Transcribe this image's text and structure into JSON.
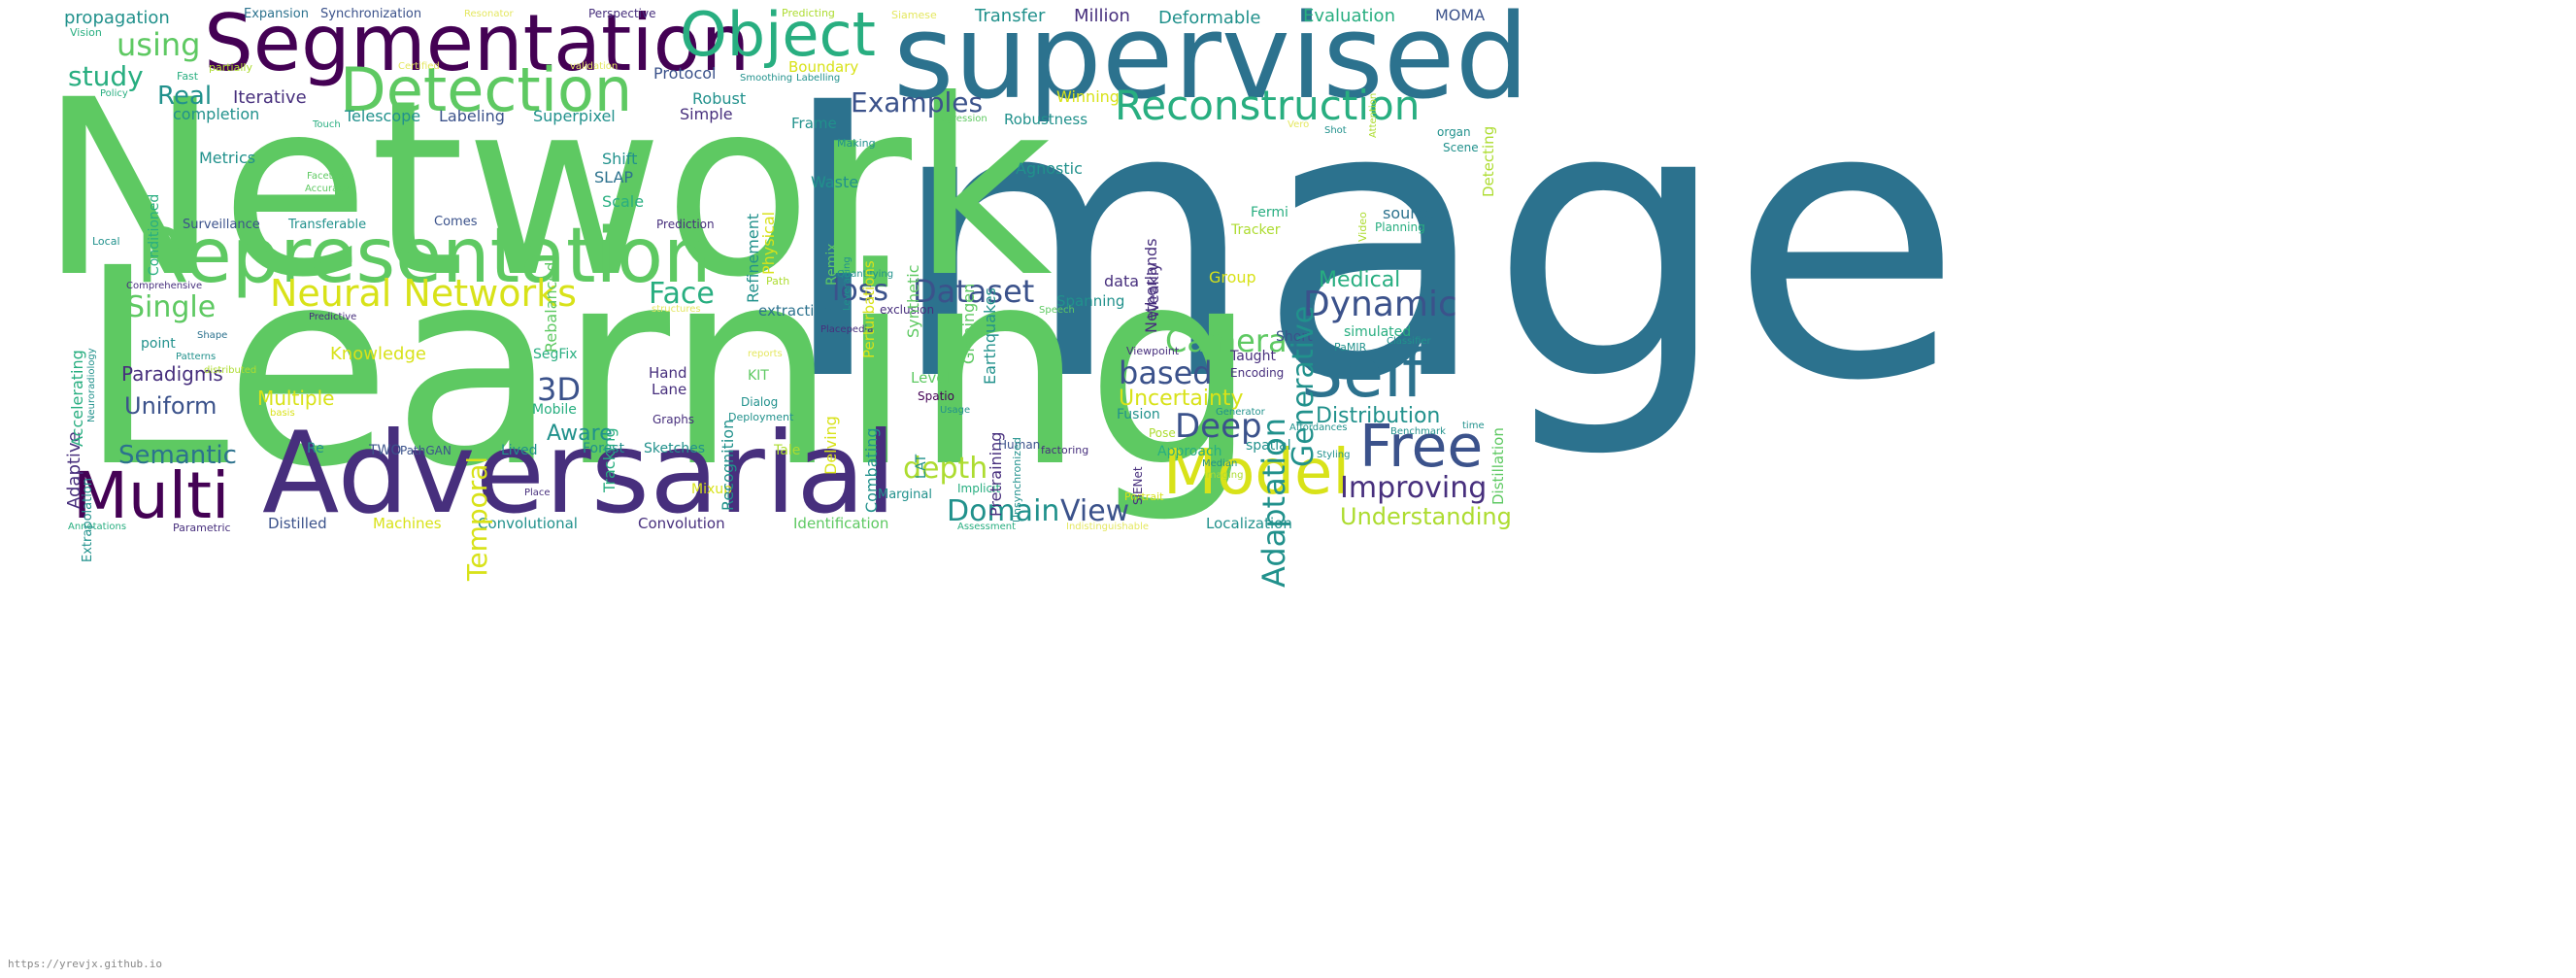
{
  "source_url": "https://yrevjx.github.io",
  "palette": {
    "dark_purple": "#440154",
    "indigo": "#472f7d",
    "slate": "#3b528b",
    "teal_blue": "#2c728e",
    "teal": "#21918c",
    "sea_green": "#28ae80",
    "green": "#5ec962",
    "yellow_green": "#addc30",
    "yellow": "#d8e219",
    "light_yellow": "#e4e75f"
  },
  "words": [
    {
      "text": "Image",
      "color": "teal_blue"
    },
    {
      "text": "Network",
      "color": "green"
    },
    {
      "text": "Learning",
      "color": "green"
    },
    {
      "text": "supervised",
      "color": "teal_blue"
    },
    {
      "text": "Segmentation",
      "color": "dark_purple"
    },
    {
      "text": "Adversarial",
      "color": "indigo"
    },
    {
      "text": "Representation",
      "color": "green"
    },
    {
      "text": "Object",
      "color": "sea_green"
    },
    {
      "text": "Detection",
      "color": "green"
    },
    {
      "text": "Reconstruction",
      "color": "sea_green"
    },
    {
      "text": "Model",
      "color": "yellow"
    },
    {
      "text": "Self",
      "color": "teal_blue"
    },
    {
      "text": "Free",
      "color": "slate"
    },
    {
      "text": "Multi",
      "color": "dark_purple"
    },
    {
      "text": "Neural Networks",
      "color": "yellow"
    },
    {
      "text": "using",
      "color": "green"
    },
    {
      "text": "study",
      "color": "sea_green"
    },
    {
      "text": "Dynamic",
      "color": "slate"
    },
    {
      "text": "Dataset",
      "color": "slate"
    },
    {
      "text": "Deep",
      "color": "slate"
    },
    {
      "text": "Face",
      "color": "sea_green"
    },
    {
      "text": "Single",
      "color": "green"
    },
    {
      "text": "Examples",
      "color": "slate"
    },
    {
      "text": "Camera",
      "color": "green"
    },
    {
      "text": "based",
      "color": "slate"
    },
    {
      "text": "Improving",
      "color": "indigo"
    },
    {
      "text": "Domain",
      "color": "teal"
    },
    {
      "text": "View",
      "color": "slate"
    },
    {
      "text": "Real",
      "color": "teal"
    },
    {
      "text": "loss",
      "color": "slate"
    },
    {
      "text": "depth",
      "color": "yellow_green"
    },
    {
      "text": "Semantic",
      "color": "teal_blue"
    },
    {
      "text": "3D",
      "color": "slate"
    },
    {
      "text": "Uncertainty",
      "color": "yellow"
    },
    {
      "text": "Understanding",
      "color": "yellow_green"
    },
    {
      "text": "Uniform",
      "color": "slate"
    },
    {
      "text": "Distribution",
      "color": "teal"
    },
    {
      "text": "Medical",
      "color": "sea_green"
    },
    {
      "text": "Paradigms",
      "color": "indigo"
    },
    {
      "text": "Multiple",
      "color": "yellow"
    },
    {
      "text": "Aware",
      "color": "teal"
    },
    {
      "text": "Knowledge",
      "color": "yellow"
    },
    {
      "text": "Iterative",
      "color": "indigo"
    },
    {
      "text": "propagation",
      "color": "teal"
    },
    {
      "text": "Transfer",
      "color": "teal"
    },
    {
      "text": "Million",
      "color": "indigo"
    },
    {
      "text": "Deformable",
      "color": "teal"
    },
    {
      "text": "Evaluation",
      "color": "sea_green"
    },
    {
      "text": "MOMA",
      "color": "slate"
    },
    {
      "text": "Protocol",
      "color": "slate"
    },
    {
      "text": "Boundary",
      "color": "yellow"
    },
    {
      "text": "Winning",
      "color": "yellow"
    },
    {
      "text": "Robust",
      "color": "teal"
    },
    {
      "text": "completion",
      "color": "teal"
    },
    {
      "text": "Telescope",
      "color": "teal"
    },
    {
      "text": "Labeling",
      "color": "slate"
    },
    {
      "text": "Superpixel",
      "color": "teal"
    },
    {
      "text": "Simple",
      "color": "indigo"
    },
    {
      "text": "Robustness",
      "color": "teal"
    },
    {
      "text": "Frame",
      "color": "teal"
    },
    {
      "text": "Shift",
      "color": "teal"
    },
    {
      "text": "SLAP",
      "color": "teal_blue"
    },
    {
      "text": "Scale",
      "color": "sea_green"
    },
    {
      "text": "Metrics",
      "color": "teal"
    },
    {
      "text": "Waste",
      "color": "teal"
    },
    {
      "text": "Agnostic",
      "color": "teal"
    },
    {
      "text": "source",
      "color": "teal_blue"
    },
    {
      "text": "Fermi",
      "color": "sea_green"
    },
    {
      "text": "Tracker",
      "color": "yellow_green"
    },
    {
      "text": "Planning",
      "color": "sea_green"
    },
    {
      "text": "Surveillance",
      "color": "slate"
    },
    {
      "text": "Transferable",
      "color": "teal"
    },
    {
      "text": "Comes",
      "color": "slate"
    },
    {
      "text": "Prediction",
      "color": "indigo"
    },
    {
      "text": "data",
      "color": "indigo"
    },
    {
      "text": "Group",
      "color": "yellow"
    },
    {
      "text": "extraction",
      "color": "teal_blue"
    },
    {
      "text": "exclusion",
      "color": "indigo"
    },
    {
      "text": "Spanning",
      "color": "teal"
    },
    {
      "text": "simulated",
      "color": "sea_green"
    },
    {
      "text": "Short",
      "color": "slate"
    },
    {
      "text": "Taught",
      "color": "indigo"
    },
    {
      "text": "point",
      "color": "teal"
    },
    {
      "text": "SegFix",
      "color": "sea_green"
    },
    {
      "text": "Hand",
      "color": "indigo"
    },
    {
      "text": "Lane",
      "color": "indigo"
    },
    {
      "text": "KIT",
      "color": "green"
    },
    {
      "text": "Level",
      "color": "green"
    },
    {
      "text": "Mobile",
      "color": "sea_green"
    },
    {
      "text": "Dialog",
      "color": "teal"
    },
    {
      "text": "Deployment",
      "color": "teal"
    },
    {
      "text": "Graphs",
      "color": "indigo"
    },
    {
      "text": "Fusion",
      "color": "teal"
    },
    {
      "text": "Pose",
      "color": "yellow_green"
    },
    {
      "text": "Approach",
      "color": "sea_green"
    },
    {
      "text": "spatial",
      "color": "teal"
    },
    {
      "text": "Re",
      "color": "teal"
    },
    {
      "text": "TWO",
      "color": "slate"
    },
    {
      "text": "PathGAN",
      "color": "slate"
    },
    {
      "text": "Lived",
      "color": "teal"
    },
    {
      "text": "Forest",
      "color": "teal"
    },
    {
      "text": "Sketches",
      "color": "teal"
    },
    {
      "text": "Tale",
      "color": "yellow_green"
    },
    {
      "text": "Mixup",
      "color": "yellow"
    },
    {
      "text": "Human",
      "color": "slate"
    },
    {
      "text": "factoring",
      "color": "indigo"
    },
    {
      "text": "Marginal",
      "color": "teal"
    },
    {
      "text": "Implicit",
      "color": "sea_green"
    },
    {
      "text": "Portrait",
      "color": "yellow"
    },
    {
      "text": "Distilled",
      "color": "slate"
    },
    {
      "text": "Machines",
      "color": "yellow"
    },
    {
      "text": "Convolutional",
      "color": "teal"
    },
    {
      "text": "Convolution",
      "color": "indigo"
    },
    {
      "text": "Identification",
      "color": "green"
    },
    {
      "text": "Localization",
      "color": "teal"
    },
    {
      "text": "Parametric",
      "color": "indigo"
    },
    {
      "text": "Annotations",
      "color": "sea_green"
    },
    {
      "text": "Assessment",
      "color": "sea_green"
    },
    {
      "text": "Indistinguishable",
      "color": "light_yellow"
    },
    {
      "text": "Expansion",
      "color": "teal_blue"
    },
    {
      "text": "Synchronization",
      "color": "slate"
    },
    {
      "text": "Resonator",
      "color": "light_yellow"
    },
    {
      "text": "Perspective",
      "color": "indigo"
    },
    {
      "text": "Predicting",
      "color": "yellow_green"
    },
    {
      "text": "Siamese",
      "color": "light_yellow"
    },
    {
      "text": "Vision",
      "color": "sea_green"
    },
    {
      "text": "Fast",
      "color": "sea_green"
    },
    {
      "text": "partially",
      "color": "yellow_green"
    },
    {
      "text": "Certified",
      "color": "light_yellow"
    },
    {
      "text": "validation",
      "color": "light_yellow"
    },
    {
      "text": "Smoothing",
      "color": "teal"
    },
    {
      "text": "Labelling",
      "color": "teal"
    },
    {
      "text": "Policy",
      "color": "sea_green"
    },
    {
      "text": "Touch",
      "color": "sea_green"
    },
    {
      "text": "Regression",
      "color": "green"
    },
    {
      "text": "Vero",
      "color": "light_yellow"
    },
    {
      "text": "Shot",
      "color": "teal"
    },
    {
      "text": "organ",
      "color": "teal"
    },
    {
      "text": "Scene",
      "color": "teal"
    },
    {
      "text": "Making",
      "color": "teal"
    },
    {
      "text": "Faceted",
      "color": "green"
    },
    {
      "text": "Accuracy",
      "color": "green"
    },
    {
      "text": "Local",
      "color": "teal"
    },
    {
      "text": "Comprehensive",
      "color": "indigo"
    },
    {
      "text": "Predictive",
      "color": "indigo"
    },
    {
      "text": "Shape",
      "color": "teal_blue"
    },
    {
      "text": "Patterns",
      "color": "teal"
    },
    {
      "text": "distributed",
      "color": "yellow_green"
    },
    {
      "text": "basis",
      "color": "yellow"
    },
    {
      "text": "Quantifying",
      "color": "teal"
    },
    {
      "text": "Path",
      "color": "yellow_green"
    },
    {
      "text": "structures",
      "color": "light_yellow"
    },
    {
      "text": "Speech",
      "color": "green"
    },
    {
      "text": "Placepedia",
      "color": "indigo"
    },
    {
      "text": "reports",
      "color": "light_yellow"
    },
    {
      "text": "Viewpoint",
      "color": "indigo"
    },
    {
      "text": "PaMIR",
      "color": "teal"
    },
    {
      "text": "Classifier",
      "color": "teal"
    },
    {
      "text": "Encoding",
      "color": "indigo"
    },
    {
      "text": "Spatio",
      "color": "dark_purple"
    },
    {
      "text": "Usage",
      "color": "teal"
    },
    {
      "text": "Generator",
      "color": "teal"
    },
    {
      "text": "Affordances",
      "color": "teal"
    },
    {
      "text": "Benchmark",
      "color": "teal"
    },
    {
      "text": "time",
      "color": "teal"
    },
    {
      "text": "Styling",
      "color": "teal"
    },
    {
      "text": "Median",
      "color": "teal"
    },
    {
      "text": "imaging",
      "color": "yellow_green"
    },
    {
      "text": "Place",
      "color": "indigo"
    },
    {
      "text": "Adaptation",
      "color": "teal"
    },
    {
      "text": "Generative",
      "color": "teal"
    },
    {
      "text": "Temporal",
      "color": "yellow"
    },
    {
      "text": "Adaptive",
      "color": "indigo"
    },
    {
      "text": "Extrapolation",
      "color": "teal"
    },
    {
      "text": "Accelerating",
      "color": "sea_green"
    },
    {
      "text": "Neuroradiology",
      "color": "teal"
    },
    {
      "text": "Conditioned",
      "color": "sea_green"
    },
    {
      "text": "Rebalanced",
      "color": "green"
    },
    {
      "text": "Tracking",
      "color": "sea_green"
    },
    {
      "text": "Recognition",
      "color": "teal"
    },
    {
      "text": "Refinement",
      "color": "teal"
    },
    {
      "text": "Physical",
      "color": "yellow"
    },
    {
      "text": "Remix",
      "color": "green"
    },
    {
      "text": "Leveraging",
      "color": "teal"
    },
    {
      "text": "Perturbations",
      "color": "yellow"
    },
    {
      "text": "Synthetic",
      "color": "green"
    },
    {
      "text": "Groningen",
      "color": "green"
    },
    {
      "text": "Earthquakes",
      "color": "teal"
    },
    {
      "text": "Netherlands",
      "color": "indigo"
    },
    {
      "text": "Weakly",
      "color": "indigo"
    },
    {
      "text": "Delving",
      "color": "yellow"
    },
    {
      "text": "Combating",
      "color": "teal"
    },
    {
      "text": "LAT",
      "color": "teal"
    },
    {
      "text": "Pretraining",
      "color": "indigo"
    },
    {
      "text": "Unsynchronized",
      "color": "teal"
    },
    {
      "text": "SiENet",
      "color": "indigo"
    },
    {
      "text": "Video",
      "color": "yellow_green"
    },
    {
      "text": "Attention",
      "color": "yellow_green"
    },
    {
      "text": "Detecting",
      "color": "yellow_green"
    },
    {
      "text": "Distillation",
      "color": "green"
    }
  ]
}
